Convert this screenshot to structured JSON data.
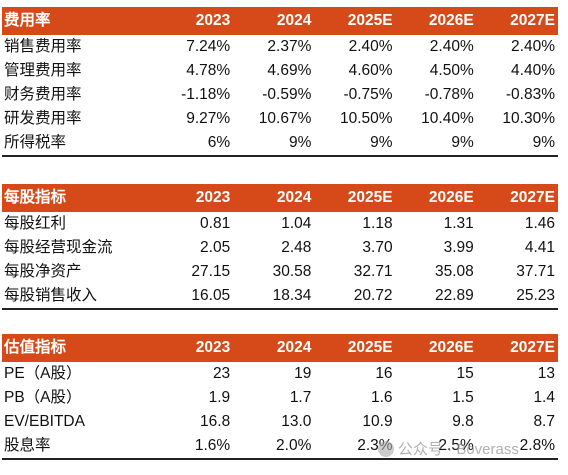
{
  "expense_table": {
    "header": [
      "费用率",
      "2023",
      "2024",
      "2025E",
      "2026E",
      "2027E"
    ],
    "rows": [
      [
        "销售费用率",
        "7.24%",
        "2.37%",
        "2.40%",
        "2.40%",
        "2.40%"
      ],
      [
        "管理费用率",
        "4.78%",
        "4.69%",
        "4.60%",
        "4.50%",
        "4.40%"
      ],
      [
        "财务费用率",
        "-1.18%",
        "-0.59%",
        "-0.75%",
        "-0.78%",
        "-0.83%"
      ],
      [
        "研发费用率",
        "9.27%",
        "10.67%",
        "10.50%",
        "10.40%",
        "10.30%"
      ],
      [
        "所得税率",
        "6%",
        "9%",
        "9%",
        "9%",
        "9%"
      ]
    ]
  },
  "per_share_table": {
    "header": [
      "每股指标",
      "2023",
      "2024",
      "2025E",
      "2026E",
      "2027E"
    ],
    "rows": [
      [
        "每股红利",
        "0.81",
        "1.04",
        "1.18",
        "1.31",
        "1.46"
      ],
      [
        "每股经营现金流",
        "2.05",
        "2.48",
        "3.70",
        "3.99",
        "4.41"
      ],
      [
        "每股净资产",
        "27.15",
        "30.58",
        "32.71",
        "35.08",
        "37.71"
      ],
      [
        "每股销售收入",
        "16.05",
        "18.34",
        "20.72",
        "22.89",
        "25.23"
      ]
    ]
  },
  "valuation_table": {
    "header": [
      "估值指标",
      "2023",
      "2024",
      "2025E",
      "2026E",
      "2027E"
    ],
    "rows": [
      [
        "PE（A股）",
        "23",
        "19",
        "16",
        "15",
        "13"
      ],
      [
        "PB（A股）",
        "1.9",
        "1.7",
        "1.6",
        "1.5",
        "1.4"
      ],
      [
        "EV/EBITDA",
        "16.8",
        "13.0",
        "10.9",
        "9.8",
        "8.7"
      ],
      [
        "股息率",
        "1.6%",
        "2.0%",
        "2.3%",
        "2.5%",
        "2.8%"
      ]
    ]
  },
  "watermark": {
    "icon": "wechat-icon",
    "text": "公众号 · Boverass"
  },
  "colors": {
    "header_bg": "#d64a19",
    "header_text": "#ffffff"
  }
}
